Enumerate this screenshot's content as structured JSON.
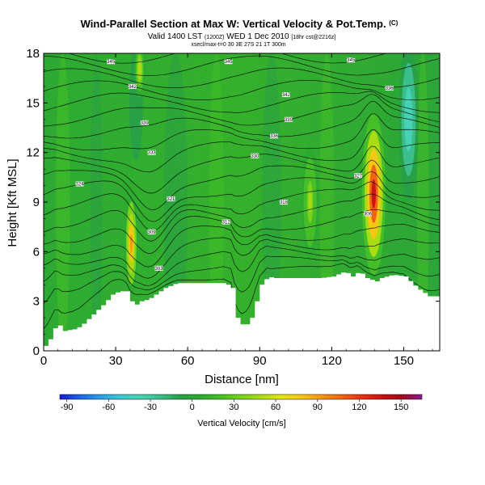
{
  "title": {
    "main": "Wind-Parallel Section at Max W: Vertical Velocity & Pot.Temp.",
    "copyright": "(C)",
    "valid_line": "Valid 1400 LST",
    "valid_paren": "(1200Z)",
    "valid_date": "WED 1 Dec 2010",
    "grid_note": "[18hr cst@2216z]",
    "small_line": "xsecl/max-t=0 30 3E 27S 21 1T 300m"
  },
  "chart_data": {
    "type": "heatmap",
    "title": "Wind-Parallel Section at Max W: Vertical Velocity & Pot.Temp.",
    "xlabel": "Distance [nm]",
    "ylabel": "Height [Kft MSL]",
    "xlim": [
      0,
      165
    ],
    "ylim": [
      0,
      18
    ],
    "xticks": [
      0,
      30,
      60,
      90,
      120,
      150
    ],
    "yticks": [
      0,
      3,
      6,
      9,
      12,
      15,
      18
    ],
    "colorbar": {
      "label": "Vertical Velocity [cm/s]",
      "ticks": [
        -90,
        -60,
        -30,
        0,
        30,
        60,
        90,
        120,
        150
      ],
      "range": [
        -95,
        165
      ],
      "colors": [
        "#1a1acd",
        "#1e64e6",
        "#2d9be6",
        "#3cc8d2",
        "#46d2b4",
        "#3cbe8c",
        "#28a046",
        "#2daa32",
        "#46be28",
        "#78d21e",
        "#aadc14",
        "#e6e614",
        "#f5c814",
        "#f59614",
        "#f06414",
        "#e63214",
        "#c81414",
        "#a00a1e",
        "#8c1e8c"
      ]
    },
    "terrain": {
      "distance_nm": [
        0,
        2,
        5,
        8,
        12,
        15,
        20,
        25,
        28,
        31,
        34,
        36,
        38,
        40,
        43,
        46,
        50,
        55,
        60,
        65,
        70,
        75,
        78,
        80,
        83,
        86,
        88,
        90,
        93,
        95,
        100,
        105,
        110,
        115,
        120,
        125,
        128,
        131,
        134,
        138,
        140,
        145,
        150,
        155,
        160,
        165
      ],
      "height_kft": [
        0.3,
        0.7,
        1.7,
        1.2,
        1.3,
        1.5,
        2.2,
        2.9,
        3.4,
        3.6,
        3.6,
        3.0,
        2.8,
        3.0,
        3.1,
        3.4,
        3.8,
        4.1,
        4.1,
        4.1,
        4.1,
        4.1,
        3.8,
        2.0,
        1.4,
        2.0,
        3.0,
        4.0,
        4.5,
        4.4,
        4.4,
        4.4,
        4.4,
        4.4,
        4.5,
        4.8,
        4.5,
        4.8,
        4.4,
        4.2,
        4.4,
        4.6,
        4.5,
        3.8,
        3.3,
        3.3
      ]
    },
    "updraft_cores": [
      {
        "x_nm": 36.5,
        "z_kft": 6.5,
        "w_cms": 100,
        "width_nm": 2.0,
        "height_kft": 2.3
      },
      {
        "x_nm": 137.5,
        "z_kft": 9.5,
        "w_cms": 140,
        "width_nm": 3.5,
        "height_kft": 3.5
      },
      {
        "x_nm": 40,
        "z_kft": 17,
        "w_cms": 60,
        "width_nm": 1.6,
        "height_kft": 1.2
      },
      {
        "x_nm": 111,
        "z_kft": 9,
        "w_cms": 45,
        "width_nm": 2.5,
        "height_kft": 2.5
      }
    ],
    "downdraft_cores": [
      {
        "x_nm": 152,
        "z_kft": 14,
        "w_cms": -50,
        "width_nm": 3.0,
        "height_kft": 3.5
      },
      {
        "x_nm": 38.5,
        "z_kft": 15,
        "w_cms": -15,
        "width_nm": 2.0,
        "height_kft": 2.5
      }
    ],
    "isentropes_K": [
      288,
      291,
      294,
      297,
      300,
      303,
      306,
      309,
      312,
      315,
      318,
      321,
      324,
      327,
      330,
      333,
      336,
      339,
      342,
      345
    ],
    "contour_labels": [
      {
        "text": "345",
        "x_nm": 28,
        "z_kft": 17.5
      },
      {
        "text": "345",
        "x_nm": 77,
        "z_kft": 17.5
      },
      {
        "text": "345",
        "x_nm": 128,
        "z_kft": 17.6
      },
      {
        "text": "342",
        "x_nm": 37,
        "z_kft": 16.0
      },
      {
        "text": "342",
        "x_nm": 101,
        "z_kft": 15.5
      },
      {
        "text": "339",
        "x_nm": 42,
        "z_kft": 13.8
      },
      {
        "text": "339",
        "x_nm": 102,
        "z_kft": 14.0
      },
      {
        "text": "336",
        "x_nm": 144,
        "z_kft": 15.9
      },
      {
        "text": "336",
        "x_nm": 96,
        "z_kft": 13.0
      },
      {
        "text": "333",
        "x_nm": 45,
        "z_kft": 12.0
      },
      {
        "text": "330",
        "x_nm": 88,
        "z_kft": 11.8
      },
      {
        "text": "327",
        "x_nm": 131,
        "z_kft": 10.6
      },
      {
        "text": "324",
        "x_nm": 15,
        "z_kft": 10.1
      },
      {
        "text": "321",
        "x_nm": 53,
        "z_kft": 9.2
      },
      {
        "text": "318",
        "x_nm": 100,
        "z_kft": 9.0
      },
      {
        "text": "312",
        "x_nm": 76,
        "z_kft": 7.8
      },
      {
        "text": "309",
        "x_nm": 45,
        "z_kft": 7.2
      },
      {
        "text": "306",
        "x_nm": 135,
        "z_kft": 8.3
      },
      {
        "text": "303",
        "x_nm": 48,
        "z_kft": 5.0
      }
    ]
  }
}
